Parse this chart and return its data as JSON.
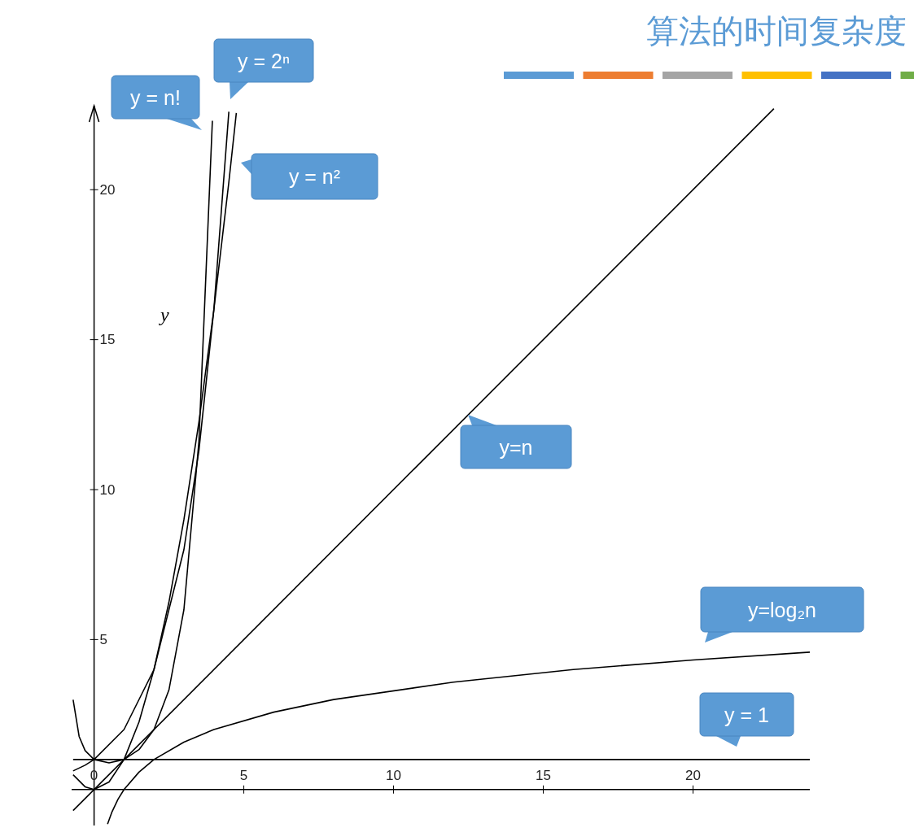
{
  "chart_data": {
    "type": "line",
    "title": "算法的时间复杂度",
    "ylabel": "y",
    "xlim": [
      -0.75,
      23.9
    ],
    "ylim": [
      -1.2,
      22.8
    ],
    "xticks": [
      0,
      5,
      10,
      15,
      20
    ],
    "yticks": [
      5,
      10,
      15,
      20
    ],
    "series": [
      {
        "name": "y = n!",
        "color": "#000000",
        "x": [
          -0.7,
          -0.5,
          -0.3,
          0,
          0.5,
          1,
          1.5,
          2,
          2.5,
          3,
          3.5,
          3.95
        ],
        "values": [
          2.99,
          1.77,
          1.3,
          1,
          0.89,
          1,
          1.33,
          2,
          3.32,
          6,
          11.6,
          22.3
        ]
      },
      {
        "name": "y = 2ⁿ",
        "color": "#000000",
        "x": [
          -0.7,
          -0.3,
          0,
          1,
          2,
          3,
          3.5,
          4,
          4.5
        ],
        "values": [
          0.62,
          0.81,
          1,
          2,
          4,
          8,
          11.3,
          16,
          22.6
        ]
      },
      {
        "name": "y = n²",
        "color": "#000000",
        "x": [
          -0.7,
          -0.3,
          0,
          0.5,
          1,
          1.5,
          2,
          2.5,
          3,
          3.5,
          4,
          4.5,
          4.75
        ],
        "values": [
          0.49,
          0.09,
          0,
          0.25,
          1,
          2.25,
          4,
          6.25,
          9,
          12.25,
          16,
          20.25,
          22.56
        ]
      },
      {
        "name": "y=n",
        "color": "#000000",
        "x": [
          -0.7,
          22.7
        ],
        "values": [
          -0.7,
          22.7
        ]
      },
      {
        "name": "y=log₂n",
        "color": "#000000",
        "x": [
          0.45,
          0.6,
          0.8,
          1,
          1.5,
          2,
          3,
          4,
          6,
          8,
          12,
          16,
          20,
          23.9
        ],
        "values": [
          -1.15,
          -0.74,
          -0.32,
          0,
          0.58,
          1,
          1.58,
          2,
          2.58,
          3,
          3.58,
          4,
          4.32,
          4.58
        ]
      },
      {
        "name": "y = 1",
        "color": "#000000",
        "x": [
          -0.7,
          23.9
        ],
        "values": [
          1,
          1
        ]
      }
    ]
  }
}
